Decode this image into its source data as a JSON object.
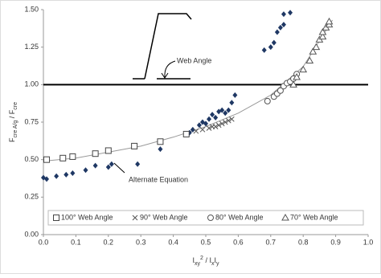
{
  "chart_data": {
    "type": "scatter",
    "x_label": [
      "I",
      "xy",
      "2",
      " / I",
      "x",
      "I",
      "y"
    ],
    "y_label": [
      "F",
      "cre A/g",
      " / F",
      "cre"
    ],
    "xlim": [
      0,
      1
    ],
    "ylim": [
      0,
      1.5
    ],
    "xticks": [
      {
        "value": 0,
        "label": "0.0"
      },
      0.1,
      0.2,
      0.3,
      0.4,
      0.5,
      0.6,
      0.7,
      0.8,
      0.9,
      {
        "value": 1,
        "label": "1.0"
      }
    ],
    "yticks": [
      {
        "value": 0,
        "label": "0.00"
      },
      {
        "value": 0.25,
        "label": "0.25"
      },
      {
        "value": 0.5,
        "label": "0.50"
      },
      {
        "value": 0.75,
        "label": "0.75"
      },
      {
        "value": 1,
        "label": "1.00"
      },
      {
        "value": 1.25,
        "label": "1.25"
      },
      {
        "value": 1.5,
        "label": "1.50"
      }
    ],
    "reference_line": 1,
    "annotations": [
      "Web Angle",
      "Alternate Equation"
    ],
    "series": [
      {
        "marker": "line",
        "color": "#999999",
        "x": [
          0,
          0.1,
          0.2,
          0.3,
          0.4,
          0.5,
          0.6,
          0.7,
          0.8,
          0.89
        ],
        "values": [
          0.49,
          0.51,
          0.55,
          0.59,
          0.65,
          0.72,
          0.81,
          0.93,
          1.12,
          1.43
        ]
      },
      {
        "marker": "diamond",
        "color": "#1f3864",
        "x": [
          0,
          0.01,
          0.04,
          0.07,
          0.09,
          0.13,
          0.16,
          0.2,
          0.21,
          0.29,
          0.36,
          0.45,
          0.46,
          0.48,
          0.49,
          0.5,
          0.51,
          0.52,
          0.53,
          0.54,
          0.55,
          0.56,
          0.57,
          0.58,
          0.59,
          0.68,
          0.7,
          0.71,
          0.72,
          0.73,
          0.74,
          0.74,
          0.76
        ],
        "values": [
          0.38,
          0.37,
          0.39,
          0.4,
          0.41,
          0.43,
          0.46,
          0.45,
          0.47,
          0.47,
          0.57,
          0.68,
          0.7,
          0.73,
          0.75,
          0.74,
          0.77,
          0.8,
          0.78,
          0.82,
          0.83,
          0.81,
          0.83,
          0.88,
          0.93,
          1.23,
          1.25,
          1.28,
          1.35,
          1.38,
          1.4,
          1.47,
          1.48
        ]
      },
      {
        "name": "100° Web Angle",
        "marker": "square",
        "color": "#444444",
        "x": [
          0.01,
          0.06,
          0.09,
          0.16,
          0.2,
          0.28,
          0.36,
          0.44
        ],
        "values": [
          0.5,
          0.51,
          0.52,
          0.54,
          0.56,
          0.59,
          0.62,
          0.67
        ]
      },
      {
        "name": "90° Web Angle",
        "marker": "cross",
        "color": "#555555",
        "x": [
          0.47,
          0.49,
          0.51,
          0.52,
          0.53,
          0.54,
          0.55,
          0.56,
          0.57,
          0.58
        ],
        "values": [
          0.69,
          0.7,
          0.71,
          0.72,
          0.72,
          0.73,
          0.74,
          0.75,
          0.76,
          0.77
        ]
      },
      {
        "name": "80° Web Angle",
        "marker": "circle",
        "color": "#555555",
        "x": [
          0.69,
          0.71,
          0.72,
          0.73,
          0.74,
          0.75,
          0.76,
          0.77,
          0.78
        ],
        "values": [
          0.89,
          0.92,
          0.94,
          0.96,
          0.99,
          1.01,
          1.02,
          1.04,
          1.07
        ]
      },
      {
        "name": "70° Web Angle",
        "marker": "triangle",
        "color": "#555555",
        "x": [
          0.77,
          0.78,
          0.8,
          0.82,
          0.83,
          0.84,
          0.85,
          0.86,
          0.86,
          0.87,
          0.88,
          0.88
        ],
        "values": [
          1,
          1.05,
          1.1,
          1.16,
          1.22,
          1.25,
          1.3,
          1.32,
          1.35,
          1.38,
          1.4,
          1.42
        ]
      }
    ]
  }
}
